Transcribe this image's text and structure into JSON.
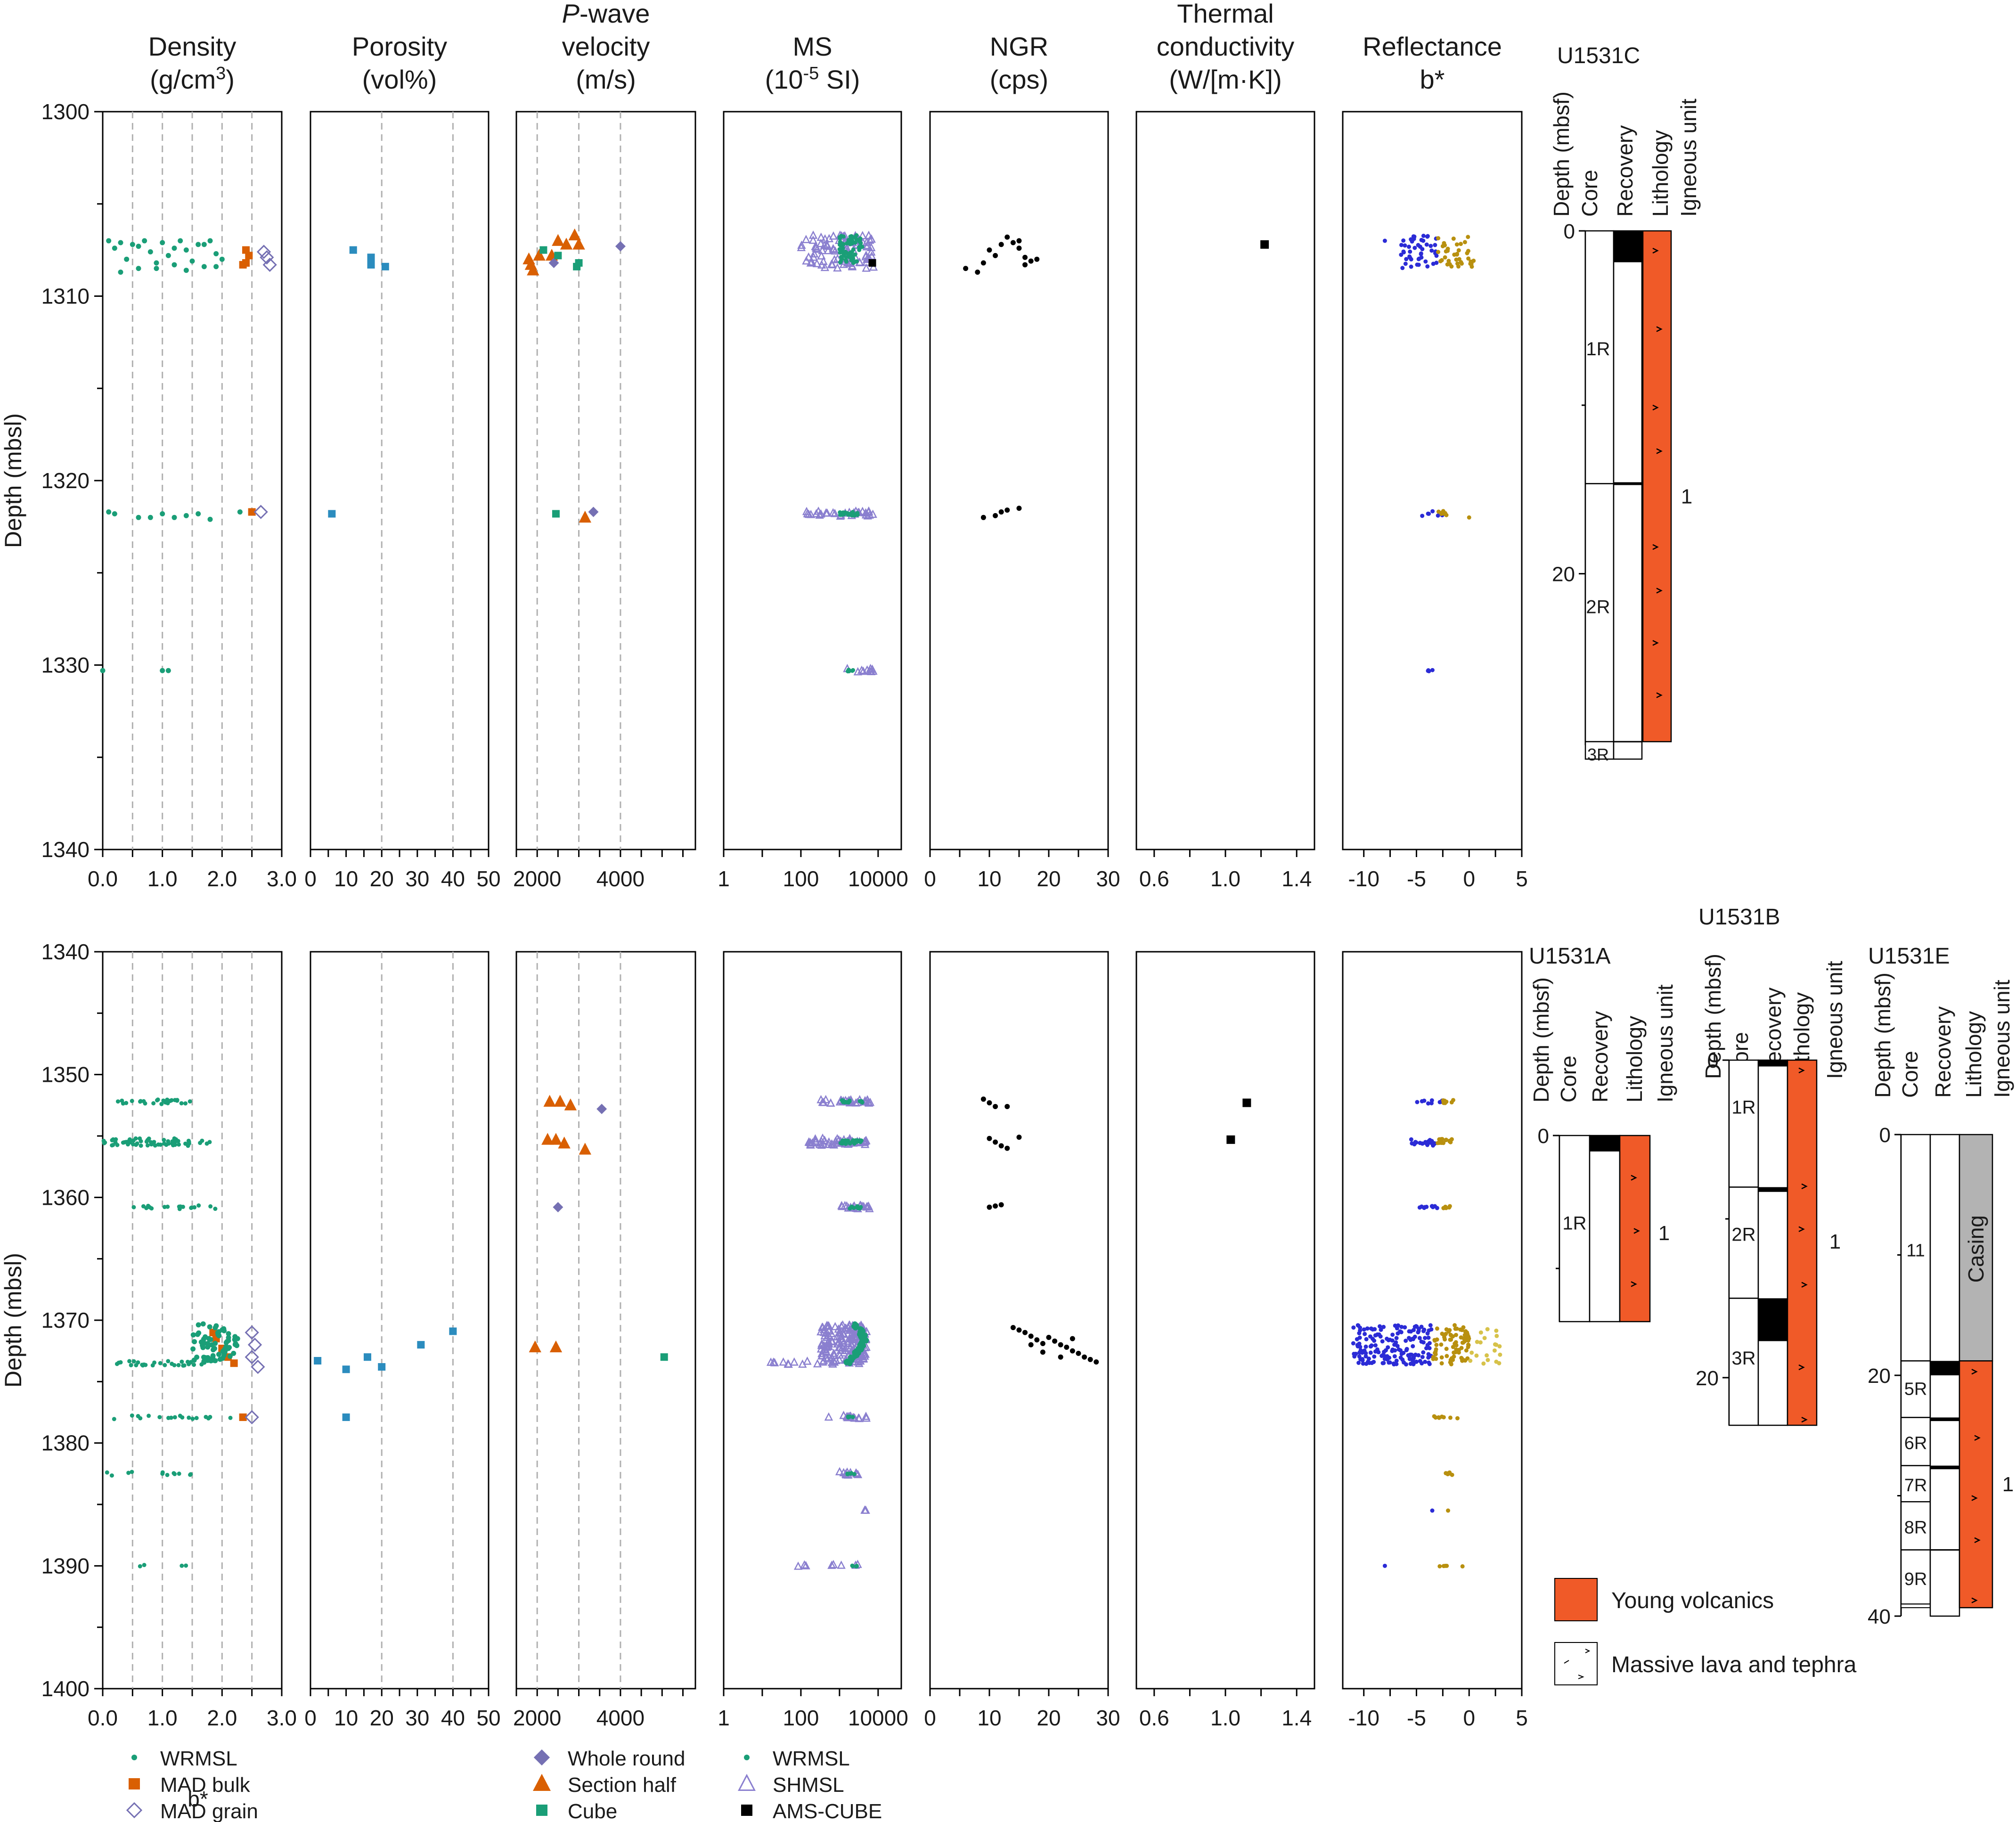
{
  "colors": {
    "wrmsl": "#1a9e77",
    "mad_bulk": "#d95f02",
    "mad_grain": "#7570b3",
    "pw_whole_round": "#7570b3",
    "pw_section_half": "#d95f02",
    "pw_cube": "#1a9e77",
    "ms_wrmsl": "#1a9e77",
    "ms_shmsl": "#8a7fcf",
    "ams": "#000000",
    "porosity": "#2b8cbe",
    "ngr": "#000000",
    "tc": "#000000",
    "refl_blue": "#2b2bd6",
    "refl_gold": "#b8900f",
    "refl_lightgold": "#d7c24a",
    "young_volcanics": "#f05a28",
    "casing": "#b3b3b3",
    "grid": "#b0b0b0"
  },
  "panels": {
    "density": {
      "title1": "Density",
      "title2": "(g/cm",
      "title2_sup": "3",
      "title2_end": ")",
      "ticks": [
        "0.0",
        "1.0",
        "2.0",
        "3.0"
      ],
      "extra_ticks": [
        "0.0"
      ]
    },
    "porosity": {
      "title1": "Porosity",
      "title2": "(vol%)",
      "ticks": [
        "0",
        "10",
        "20",
        "30",
        "40",
        "50"
      ]
    },
    "pwave": {
      "title0": "P",
      "title0b": "-wave",
      "title1": "velocity",
      "title2": "(m/s)",
      "ticks": [
        "2000",
        "4000"
      ]
    },
    "ms": {
      "title1": "MS",
      "title2": "(10",
      "title2_sup": "-5",
      "title2_end": " SI)",
      "ticks": [
        "1",
        "100",
        "10000"
      ]
    },
    "ngr": {
      "title1": "NGR",
      "title2": "(cps)",
      "ticks": [
        "0",
        "10",
        "20",
        "30"
      ]
    },
    "tc": {
      "title0": "Thermal",
      "title1": "conductivity",
      "title2": "(W/[m·K])",
      "ticks": [
        "0.6",
        "1.0",
        "1.4"
      ]
    },
    "refl": {
      "title1": "Reflectance",
      "title2": "b*",
      "ticks": [
        "-10",
        "-5",
        "0",
        "5"
      ],
      "xlabel": "b*"
    }
  },
  "y_axis": {
    "label": "Depth (mbsl)",
    "top_ticks": [
      "1300",
      "1310",
      "1320",
      "1330",
      "1340"
    ],
    "bottom_ticks": [
      "1340",
      "1350",
      "1360",
      "1370",
      "1380",
      "1390",
      "1400"
    ]
  },
  "legend": {
    "density": [
      "WRMSL",
      "MAD bulk",
      "MAD grain"
    ],
    "pwave": [
      "Whole round",
      "Section half",
      "Cube"
    ],
    "ms": [
      "WRMSL",
      "SHMSL",
      "AMS-CUBE"
    ],
    "lith": [
      "Young volcanics",
      "Massive lava and tephra"
    ]
  },
  "columns": {
    "headers": [
      "Depth (mbsf)",
      "Core",
      "Recovery",
      "Lithology",
      "Igneous unit"
    ],
    "u1531c": {
      "site": "U1531C",
      "depth_ticks": [
        "0",
        "20"
      ],
      "cores": [
        "1R",
        "2R",
        "3R"
      ],
      "unit": "1"
    },
    "u1531a": {
      "site": "U1531A",
      "depth_ticks": [
        "0"
      ],
      "cores": [
        "1R"
      ],
      "unit": "1"
    },
    "u1531b": {
      "site": "U1531B",
      "depth_ticks": [
        "0",
        "20"
      ],
      "cores": [
        "1R",
        "2R",
        "3R"
      ],
      "unit": "1"
    },
    "u1531e": {
      "site": "U1531E",
      "depth_ticks": [
        "0",
        "20",
        "40"
      ],
      "cores": [
        "11",
        "5R",
        "6R",
        "7R",
        "8R",
        "9R"
      ],
      "unit": "1",
      "casing": "Casing"
    }
  },
  "chart_data": {
    "type": "scatter",
    "y_unit": "Depth (mbsl)",
    "top": {
      "ylim": [
        1300,
        1340
      ],
      "density_wrmsl": [
        [
          0.1,
          1307.0
        ],
        [
          0.2,
          1307.4
        ],
        [
          0.3,
          1307.1
        ],
        [
          0.4,
          1308.0
        ],
        [
          0.5,
          1307.2
        ],
        [
          0.6,
          1308.5
        ],
        [
          0.7,
          1307.0
        ],
        [
          0.8,
          1307.6
        ],
        [
          0.9,
          1308.2
        ],
        [
          1.0,
          1307.1
        ],
        [
          1.1,
          1307.8
        ],
        [
          1.2,
          1308.3
        ],
        [
          1.3,
          1307.0
        ],
        [
          1.4,
          1307.5
        ],
        [
          1.5,
          1308.1
        ],
        [
          1.6,
          1307.2
        ],
        [
          1.7,
          1308.4
        ],
        [
          1.8,
          1307.0
        ],
        [
          1.9,
          1307.7
        ],
        [
          2.0,
          1308.0
        ],
        [
          0.3,
          1308.7
        ],
        [
          0.9,
          1308.5
        ],
        [
          1.4,
          1308.6
        ],
        [
          1.9,
          1308.4
        ],
        [
          0.6,
          1307.3
        ],
        [
          1.2,
          1307.4
        ],
        [
          1.7,
          1307.2
        ],
        [
          0.1,
          1321.7
        ],
        [
          0.2,
          1321.8
        ],
        [
          0.6,
          1322.0
        ],
        [
          0.8,
          1322.0
        ],
        [
          1.0,
          1321.8
        ],
        [
          1.2,
          1322.0
        ],
        [
          1.4,
          1321.9
        ],
        [
          1.6,
          1321.8
        ],
        [
          1.8,
          1322.1
        ],
        [
          2.3,
          1321.7
        ],
        [
          1.0,
          1330.3
        ],
        [
          1.1,
          1330.3
        ],
        [
          0.0,
          1330.3
        ]
      ],
      "density_mad_bulk": [
        [
          2.4,
          1307.5
        ],
        [
          2.45,
          1307.8
        ],
        [
          2.4,
          1308.2
        ],
        [
          2.35,
          1308.3
        ],
        [
          2.5,
          1321.7
        ]
      ],
      "density_mad_grain": [
        [
          2.7,
          1307.6
        ],
        [
          2.75,
          1307.9
        ],
        [
          2.8,
          1308.3
        ],
        [
          2.65,
          1321.7
        ]
      ],
      "porosity": [
        [
          12,
          1307.5
        ],
        [
          17,
          1307.9
        ],
        [
          17,
          1308.3
        ],
        [
          21,
          1308.4
        ],
        [
          6,
          1321.8
        ]
      ],
      "pwave_section_half": [
        [
          1800,
          1308.0
        ],
        [
          1850,
          1308.3
        ],
        [
          1900,
          1308.6
        ],
        [
          2050,
          1307.8
        ],
        [
          2350,
          1307.8
        ],
        [
          2500,
          1307.0
        ],
        [
          2700,
          1307.2
        ],
        [
          2900,
          1306.7
        ],
        [
          3000,
          1307.2
        ],
        [
          3150,
          1322.0
        ]
      ],
      "pwave_whole_round": [
        [
          4000,
          1307.3
        ],
        [
          2400,
          1308.2
        ],
        [
          3350,
          1321.7
        ]
      ],
      "pwave_cube": [
        [
          2150,
          1307.5
        ],
        [
          2500,
          1307.8
        ],
        [
          3000,
          1308.2
        ],
        [
          2950,
          1308.4
        ],
        [
          2450,
          1321.8
        ]
      ],
      "ngr": [
        [
          6,
          1308.5
        ],
        [
          8,
          1308.7
        ],
        [
          9,
          1308.2
        ],
        [
          10,
          1307.5
        ],
        [
          11,
          1307.8
        ],
        [
          12,
          1307.2
        ],
        [
          13,
          1306.8
        ],
        [
          14,
          1307.1
        ],
        [
          15,
          1307.4
        ],
        [
          16,
          1307.9
        ],
        [
          17,
          1308.1
        ],
        [
          18,
          1308.0
        ],
        [
          15,
          1307.0
        ],
        [
          16,
          1308.3
        ],
        [
          9,
          1322.0
        ],
        [
          11,
          1321.9
        ],
        [
          12,
          1321.7
        ],
        [
          13,
          1321.6
        ],
        [
          15,
          1321.5
        ]
      ],
      "tc": [
        [
          1.22,
          1307.2
        ]
      ]
    },
    "bottom": {
      "ylim": [
        1340,
        1400
      ],
      "density_mad_bulk": [
        [
          1.85,
          1371.0
        ],
        [
          1.9,
          1371.5
        ],
        [
          2.0,
          1372.3
        ],
        [
          2.1,
          1373.0
        ],
        [
          2.2,
          1373.5
        ],
        [
          2.35,
          1377.9
        ]
      ],
      "density_mad_grain": [
        [
          2.5,
          1371.0
        ],
        [
          2.55,
          1372.0
        ],
        [
          2.5,
          1373.0
        ],
        [
          2.6,
          1373.8
        ],
        [
          2.5,
          1377.9
        ]
      ],
      "porosity": [
        [
          2,
          1373.3
        ],
        [
          10,
          1374.0
        ],
        [
          16,
          1373.0
        ],
        [
          20,
          1373.8
        ],
        [
          31,
          1372.0
        ],
        [
          40,
          1370.9
        ],
        [
          10,
          1377.9
        ]
      ],
      "pwave_section_half": [
        [
          2300,
          1352.2
        ],
        [
          2550,
          1352.2
        ],
        [
          2800,
          1352.5
        ],
        [
          2250,
          1355.3
        ],
        [
          2450,
          1355.3
        ],
        [
          2650,
          1355.6
        ],
        [
          3150,
          1356.1
        ],
        [
          1950,
          1372.2
        ],
        [
          2450,
          1372.2
        ]
      ],
      "pwave_whole_round": [
        [
          3550,
          1352.8
        ],
        [
          2500,
          1360.8
        ]
      ],
      "pwave_cube": [
        [
          5050,
          1373.0
        ]
      ],
      "ngr": [
        [
          9,
          1352.0
        ],
        [
          10,
          1352.3
        ],
        [
          11,
          1352.6
        ],
        [
          13,
          1352.6
        ],
        [
          10,
          1355.2
        ],
        [
          11,
          1355.5
        ],
        [
          12,
          1355.8
        ],
        [
          13,
          1356.0
        ],
        [
          15,
          1355.1
        ],
        [
          10,
          1360.8
        ],
        [
          11,
          1360.7
        ],
        [
          12,
          1360.6
        ],
        [
          14,
          1370.6
        ],
        [
          15,
          1370.8
        ],
        [
          16,
          1371.0
        ],
        [
          17,
          1371.3
        ],
        [
          18,
          1371.6
        ],
        [
          19,
          1371.9
        ],
        [
          20,
          1371.4
        ],
        [
          21,
          1371.7
        ],
        [
          22,
          1372.0
        ],
        [
          23,
          1372.2
        ],
        [
          24,
          1372.5
        ],
        [
          25,
          1372.7
        ],
        [
          26,
          1373.0
        ],
        [
          27,
          1373.2
        ],
        [
          28,
          1373.4
        ],
        [
          17,
          1372.0
        ],
        [
          19,
          1372.6
        ],
        [
          22,
          1373.0
        ],
        [
          24,
          1371.5
        ]
      ],
      "tc": [
        [
          1.12,
          1352.3
        ],
        [
          1.03,
          1355.3
        ]
      ]
    }
  }
}
